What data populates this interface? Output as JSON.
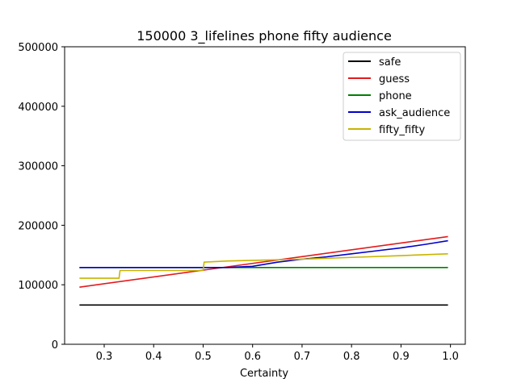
{
  "chart_data": {
    "type": "line",
    "title": "150000 3_lifelines phone fifty audience",
    "xlabel": "Certainty",
    "ylabel": "",
    "xlim": [
      0.22,
      1.03
    ],
    "ylim": [
      0,
      500000
    ],
    "xticks": [
      0.3,
      0.4,
      0.5,
      0.6,
      0.7,
      0.8,
      0.9,
      1.0
    ],
    "xtick_labels": [
      "0.3",
      "0.4",
      "0.5",
      "0.6",
      "0.7",
      "0.8",
      "0.9",
      "1.0"
    ],
    "yticks": [
      0,
      100000,
      200000,
      300000,
      400000,
      500000
    ],
    "ytick_labels": [
      "0",
      "100000",
      "200000",
      "300000",
      "400000",
      "500000"
    ],
    "legend_position": "top-right",
    "grid": false,
    "series": [
      {
        "name": "safe",
        "color": "#000000",
        "points": [
          [
            0.25,
            66000
          ],
          [
            0.995,
            66000
          ]
        ]
      },
      {
        "name": "guess",
        "color": "#e31a1c",
        "points": [
          [
            0.25,
            96000
          ],
          [
            0.995,
            181000
          ]
        ]
      },
      {
        "name": "phone",
        "color": "#008000",
        "points": [
          [
            0.25,
            129000
          ],
          [
            0.995,
            129000
          ]
        ]
      },
      {
        "name": "ask_audience",
        "color": "#0000cc",
        "points": [
          [
            0.25,
            129000
          ],
          [
            0.55,
            129000
          ],
          [
            0.6,
            131000
          ],
          [
            0.65,
            138000
          ],
          [
            0.7,
            143000
          ],
          [
            0.75,
            147000
          ],
          [
            0.8,
            152000
          ],
          [
            0.85,
            157000
          ],
          [
            0.9,
            162000
          ],
          [
            0.95,
            168000
          ],
          [
            0.995,
            174000
          ]
        ]
      },
      {
        "name": "fifty_fifty",
        "color": "#c8b400",
        "points": [
          [
            0.25,
            111000
          ],
          [
            0.33,
            111000
          ],
          [
            0.332,
            124000
          ],
          [
            0.5,
            124000
          ],
          [
            0.502,
            138000
          ],
          [
            0.55,
            140000
          ],
          [
            0.6,
            141000
          ],
          [
            0.7,
            143000
          ],
          [
            0.8,
            146000
          ],
          [
            0.9,
            149000
          ],
          [
            0.995,
            152000
          ]
        ]
      }
    ]
  }
}
